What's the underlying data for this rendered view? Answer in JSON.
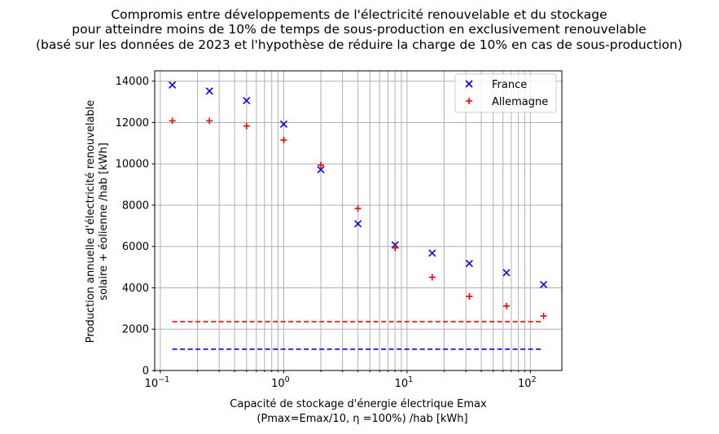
{
  "chart_data": {
    "type": "scatter",
    "title_lines": [
      "Compromis entre développements de l'électricité renouvelable et du stockage",
      "pour atteindre moins de 10% de temps de sous-production en exclusivement renouvelable",
      "(basé sur les données de 2023 et l'hypothèse de réduire la charge de 10% en cas de sous-production)"
    ],
    "xlabel_lines": [
      "Capacité de stockage d'énergie électrique Emax",
      "(Pmax=Emax/10, η =100%) /hab [kWh]"
    ],
    "ylabel_lines": [
      "Production annuelle d'électricité renouvelable",
      "solaire + éolienne /hab [kWh]"
    ],
    "x_scale": "log",
    "xlim": [
      0.09,
      180
    ],
    "ylim": [
      0,
      14500
    ],
    "x_ticks": [
      {
        "value": 0.1,
        "base": "10",
        "exp": "−1"
      },
      {
        "value": 1,
        "base": "10",
        "exp": "0"
      },
      {
        "value": 10,
        "base": "10",
        "exp": "1"
      },
      {
        "value": 100,
        "base": "10",
        "exp": "2"
      }
    ],
    "y_ticks": [
      0,
      2000,
      4000,
      6000,
      8000,
      10000,
      12000,
      14000
    ],
    "y_tick_labels": [
      "0",
      "2000",
      "4000",
      "6000",
      "8000",
      "10000",
      "12000",
      "14000"
    ],
    "grid": "both-major-minor",
    "legend_position": "top-right",
    "series": [
      {
        "name": "France",
        "color": "#0000ff",
        "marker": "x",
        "x": [
          0.125,
          0.25,
          0.5,
          1,
          2,
          4,
          8,
          16,
          32,
          64,
          128
        ],
        "y": [
          13820,
          13520,
          13060,
          11920,
          9720,
          7100,
          6080,
          5680,
          5180,
          4730,
          4160
        ]
      },
      {
        "name": "Allemagne",
        "color": "#ff0000",
        "marker": "+",
        "x": [
          0.125,
          0.25,
          0.5,
          1,
          2,
          4,
          8,
          16,
          32,
          64,
          128
        ],
        "y": [
          12080,
          12080,
          11830,
          11150,
          9940,
          7840,
          5930,
          4510,
          3580,
          3120,
          2640
        ]
      }
    ],
    "reference_lines": [
      {
        "color": "#ff0000",
        "y": 2360,
        "x_from": 0.125,
        "x_to": 128
      },
      {
        "color": "#0000ff",
        "y": 1030,
        "x_from": 0.125,
        "x_to": 128
      }
    ]
  }
}
